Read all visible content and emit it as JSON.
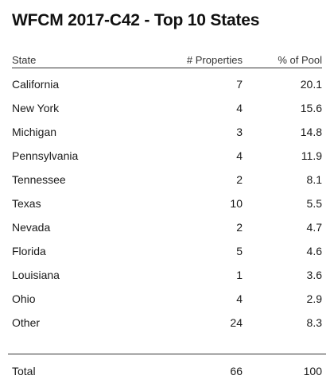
{
  "title": "WFCM 2017-C42 - Top 10 States",
  "columns": {
    "state": "State",
    "properties": "# Properties",
    "pool": "% of Pool"
  },
  "rows": [
    {
      "state": "California",
      "properties": "7",
      "pool": "20.1"
    },
    {
      "state": "New York",
      "properties": "4",
      "pool": "15.6"
    },
    {
      "state": "Michigan",
      "properties": "3",
      "pool": "14.8"
    },
    {
      "state": "Pennsylvania",
      "properties": "4",
      "pool": "11.9"
    },
    {
      "state": "Tennessee",
      "properties": "2",
      "pool": "8.1"
    },
    {
      "state": "Texas",
      "properties": "10",
      "pool": "5.5"
    },
    {
      "state": "Nevada",
      "properties": "2",
      "pool": "4.7"
    },
    {
      "state": "Florida",
      "properties": "5",
      "pool": "4.6"
    },
    {
      "state": "Louisiana",
      "properties": "1",
      "pool": "3.6"
    },
    {
      "state": "Ohio",
      "properties": "4",
      "pool": "2.9"
    },
    {
      "state": "Other",
      "properties": "24",
      "pool": "8.3"
    }
  ],
  "total": {
    "label": "Total",
    "properties": "66",
    "pool": "100"
  }
}
